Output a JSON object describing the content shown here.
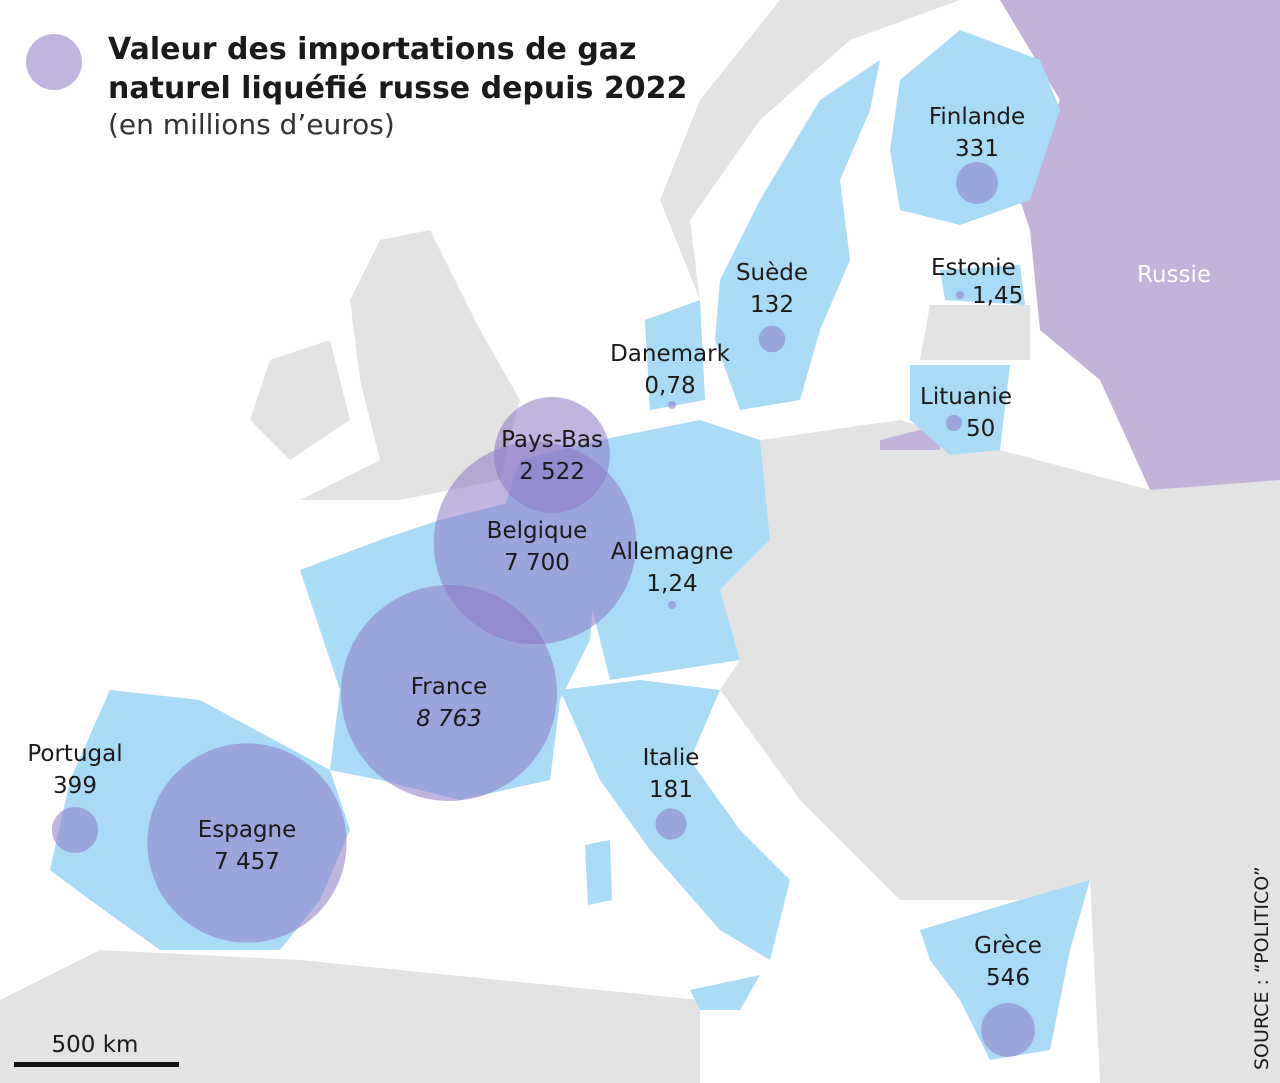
{
  "chart_data": {
    "type": "bubble-map",
    "title": "Valeur des importations de gaz naturel liquéfié russe depuis 2022",
    "subtitle": "(en millions d’euros)",
    "categories": [
      "Finlande",
      "Suède",
      "Estonie",
      "Danemark",
      "Lituanie",
      "Pays-Bas",
      "Belgique",
      "Allemagne",
      "France",
      "Portugal",
      "Espagne",
      "Italie",
      "Grèce"
    ],
    "values": [
      331,
      132,
      1.45,
      0.78,
      50,
      2522,
      7700,
      1.24,
      8763,
      399,
      7457,
      181,
      546
    ],
    "value_labels": [
      "331",
      "132",
      "1,45",
      "0,78",
      "50",
      "2 522",
      "7 700",
      "1,24",
      "8 763",
      "399",
      "7 457",
      "181",
      "546"
    ],
    "color": "#8c78c4",
    "region_label": "Russie",
    "scale_label": "500 km",
    "source": "SOURCE : “POLITICO”"
  }
}
